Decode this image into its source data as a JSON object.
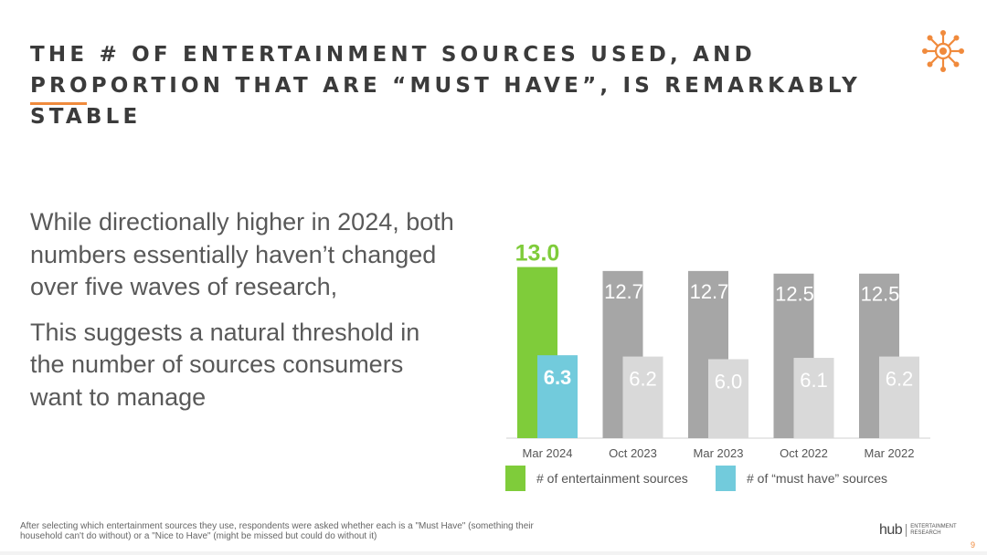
{
  "slide": {
    "title": "THE # OF ENTERTAINMENT SOURCES USED, AND PROPORTION THAT ARE “MUST HAVE”, IS REMARKABLY STABLE",
    "body_paragraphs": [
      "While directionally higher in 2024, both numbers essentially haven’t changed over five waves of research,",
      "This suggests a natural threshold in the number of sources consumers want to manage"
    ],
    "footnote": "After selecting which entertainment sources they use, respondents were asked whether each is a \"Must Have\" (something their household can't do without) or a \"Nice to Have\" (might be missed but could do without it)",
    "brand_name": "hub",
    "brand_subtitle": "ENTERTAINMENT RESEARCH",
    "page_number": "9"
  },
  "colors": {
    "accent_orange": "#f08a3c",
    "highlight_green": "#7fcc3a",
    "highlight_blue": "#72cbdc",
    "total_gray": "#a6a6a6",
    "musthave_gray": "#d9d9d9"
  },
  "chart_data": {
    "type": "bar",
    "categories": [
      "Mar 2024",
      "Oct 2023",
      "Mar 2023",
      "Oct 2022",
      "Mar 2022"
    ],
    "series": [
      {
        "name": "# of entertainment sources",
        "values": [
          13.0,
          12.7,
          12.7,
          12.5,
          12.5
        ],
        "labels": [
          "13.0",
          "12.7",
          "12.7",
          "12.5",
          "12.5"
        ]
      },
      {
        "name": "# of “must have” sources",
        "values": [
          6.3,
          6.2,
          6.0,
          6.1,
          6.2
        ],
        "labels": [
          "6.3",
          "6.2",
          "6.0",
          "6.1",
          "6.2"
        ]
      }
    ],
    "title": "",
    "xlabel": "",
    "ylabel": "",
    "ylim": [
      0,
      13.8
    ],
    "grid": false,
    "legend": "bottom"
  }
}
